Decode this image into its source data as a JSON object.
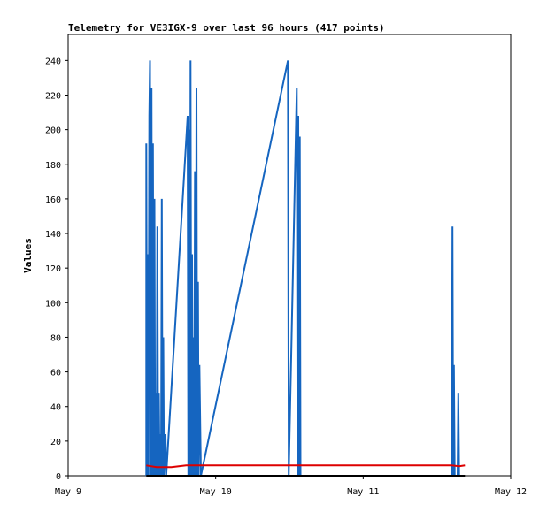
{
  "chart_data": {
    "type": "line",
    "title": "Telemetry for VE3IGX-9 over last 96 hours (417 points)",
    "xlabel": "",
    "ylabel": "Values",
    "xlim": [
      0,
      3
    ],
    "ylim": [
      0,
      255
    ],
    "x_ticks": [
      {
        "x": 0,
        "label": "May 9"
      },
      {
        "x": 1,
        "label": "May 10"
      },
      {
        "x": 2,
        "label": "May 11"
      },
      {
        "x": 3,
        "label": "May 12"
      }
    ],
    "y_ticks": [
      0,
      20,
      40,
      60,
      80,
      100,
      120,
      140,
      160,
      180,
      200,
      220,
      240
    ],
    "grid": false,
    "series": [
      {
        "color": "#1565c0",
        "points": [
          [
            0.53,
            0
          ],
          [
            0.53,
            192
          ],
          [
            0.535,
            0
          ],
          [
            0.54,
            128
          ],
          [
            0.545,
            0
          ],
          [
            0.55,
            208
          ],
          [
            0.555,
            240
          ],
          [
            0.56,
            0
          ],
          [
            0.565,
            224
          ],
          [
            0.57,
            0
          ],
          [
            0.575,
            192
          ],
          [
            0.58,
            0
          ],
          [
            0.585,
            160
          ],
          [
            0.59,
            0
          ],
          [
            0.595,
            48
          ],
          [
            0.6,
            0
          ],
          [
            0.605,
            144
          ],
          [
            0.61,
            0
          ],
          [
            0.615,
            48
          ],
          [
            0.62,
            0
          ],
          [
            0.625,
            24
          ],
          [
            0.63,
            0
          ],
          [
            0.635,
            160
          ],
          [
            0.64,
            0
          ],
          [
            0.645,
            80
          ],
          [
            0.65,
            0
          ],
          [
            0.66,
            24
          ],
          [
            0.665,
            0
          ],
          [
            0.81,
            208
          ],
          [
            0.815,
            0
          ],
          [
            0.82,
            200
          ],
          [
            0.825,
            0
          ],
          [
            0.83,
            240
          ],
          [
            0.835,
            0
          ],
          [
            0.84,
            128
          ],
          [
            0.845,
            0
          ],
          [
            0.85,
            80
          ],
          [
            0.855,
            0
          ],
          [
            0.86,
            176
          ],
          [
            0.865,
            0
          ],
          [
            0.87,
            224
          ],
          [
            0.875,
            0
          ],
          [
            0.88,
            112
          ],
          [
            0.885,
            0
          ],
          [
            0.89,
            64
          ],
          [
            0.9,
            0
          ],
          [
            1.49,
            240
          ],
          [
            1.495,
            0
          ],
          [
            1.55,
            224
          ],
          [
            1.555,
            0
          ],
          [
            1.56,
            208
          ],
          [
            1.565,
            0
          ],
          [
            1.57,
            196
          ],
          [
            1.575,
            0
          ],
          [
            2.6,
            0
          ],
          [
            2.605,
            144
          ],
          [
            2.61,
            0
          ],
          [
            2.615,
            64
          ],
          [
            2.62,
            0
          ],
          [
            2.64,
            0
          ],
          [
            2.645,
            48
          ],
          [
            2.65,
            0
          ]
        ]
      },
      {
        "color": "#dd0000",
        "points": [
          [
            0.53,
            6
          ],
          [
            0.6,
            5
          ],
          [
            0.7,
            5
          ],
          [
            0.75,
            5.5
          ],
          [
            0.8,
            6
          ],
          [
            0.9,
            6
          ],
          [
            1.5,
            6
          ],
          [
            2.0,
            6
          ],
          [
            2.6,
            6
          ],
          [
            2.65,
            5.5
          ],
          [
            2.69,
            6
          ]
        ]
      },
      {
        "color": "#000000",
        "points": [
          [
            0.53,
            0
          ],
          [
            2.69,
            0
          ]
        ]
      }
    ]
  }
}
